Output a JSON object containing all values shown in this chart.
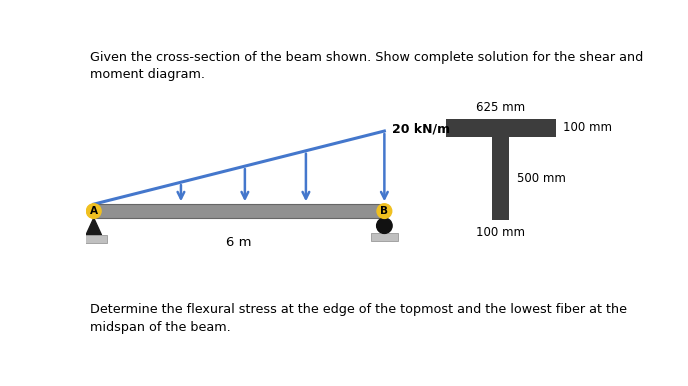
{
  "title_text": "Given the cross-section of the beam shown. Show complete solution for the shear and\nmoment diagram.",
  "bottom_text": "Determine the flexural stress at the edge of the topmost and the lowest fiber at the\nmidspan of the beam.",
  "beam_label_6m": "6 m",
  "load_label": "20 kN/m",
  "dim_625": "625 mm",
  "dim_100_top": "100 mm",
  "dim_500": "500 mm",
  "dim_100_bot": "100 mm",
  "beam_color": "#909090",
  "cross_section_color": "#3d3d3d",
  "bg_color": "#ffffff",
  "arrow_color": "#4477cc",
  "label_color": "#000000",
  "point_A_label": "A",
  "point_B_label": "B",
  "yellow_circle": "#f0c020",
  "triangle_color": "#1a1a1a",
  "ground_color": "#c0c0c0",
  "circle_roller_color": "#111111"
}
